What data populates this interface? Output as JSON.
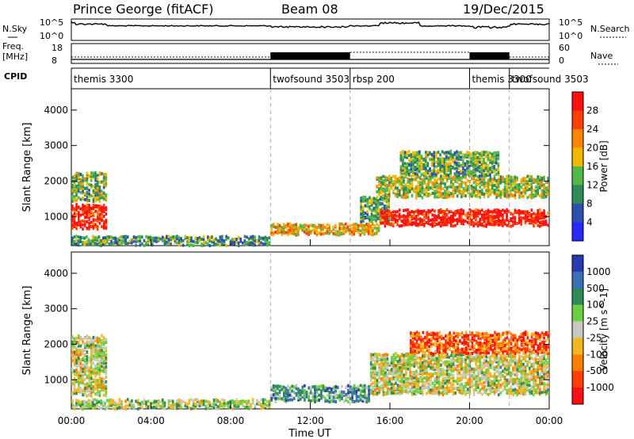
{
  "header": {
    "station": "Prince George (fitACF)",
    "beam": "Beam 08",
    "date": "19/Dec/2015"
  },
  "noise_panel": {
    "left_label": "N.Sky",
    "right_label": "N.Search",
    "left_ticks": [
      "10^5",
      "10^0"
    ],
    "right_ticks": [
      "10^5",
      "10^0"
    ]
  },
  "freq_panel": {
    "left_label_1": "Freq.",
    "left_label_2": "[MHz]",
    "left_ticks": [
      "18",
      "8"
    ],
    "right_label": "Nave",
    "right_ticks": [
      "60",
      "0"
    ]
  },
  "cpid_panel": {
    "label": "CPID",
    "modes": [
      {
        "name": "themis 3300",
        "start": 0.0
      },
      {
        "name": "twofsound 3503",
        "start": 10.0
      },
      {
        "name": "rbsp 200",
        "start": 14.0
      },
      {
        "name": "themis 3300",
        "start": 20.0
      },
      {
        "name": "twofsound 3503",
        "start": 22.0
      }
    ]
  },
  "x_axis": {
    "title": "Time UT",
    "tick_labels": [
      "00:00",
      "04:00",
      "08:00",
      "12:00",
      "16:00",
      "20:00",
      "00:00"
    ],
    "tick_hours": [
      0,
      4,
      8,
      12,
      16,
      20,
      24
    ]
  },
  "chart_data": [
    {
      "type": "heatmap",
      "name": "power",
      "ylabel": "Slant Range [km]",
      "ylim": [
        180,
        4600
      ],
      "xlim": [
        0,
        24
      ],
      "y_ticks": [
        1000,
        2000,
        3000,
        4000
      ],
      "colorbar": {
        "title": "Power [dB]",
        "tick_labels": [
          "4",
          "8",
          "12",
          "16",
          "20",
          "24",
          "28"
        ],
        "colors": [
          "#2828ff",
          "#2f4fb0",
          "#2e8b57",
          "#52b848",
          "#f0b800",
          "#ff8800",
          "#ff4000",
          "#ff1010"
        ]
      },
      "regions": [
        {
          "t0": 0.0,
          "t1": 1.8,
          "r0": 700,
          "r1": 1400,
          "level": 0.92
        },
        {
          "t0": 0.0,
          "t1": 1.8,
          "r0": 1500,
          "r1": 2300,
          "level": 0.45
        },
        {
          "t0": 0.0,
          "t1": 10.0,
          "r0": 250,
          "r1": 500,
          "level": 0.35
        },
        {
          "t0": 10.0,
          "t1": 15.5,
          "r0": 550,
          "r1": 850,
          "level": 0.6
        },
        {
          "t0": 14.5,
          "t1": 16.0,
          "r0": 900,
          "r1": 1600,
          "level": 0.4
        },
        {
          "t0": 15.5,
          "t1": 24.0,
          "r0": 800,
          "r1": 1250,
          "level": 0.95
        },
        {
          "t0": 15.3,
          "t1": 24.0,
          "r0": 1600,
          "r1": 2200,
          "level": 0.5
        },
        {
          "t0": 16.5,
          "t1": 21.5,
          "r0": 2200,
          "r1": 2900,
          "level": 0.4
        }
      ]
    },
    {
      "type": "heatmap",
      "name": "velocity",
      "ylabel": "Slant Range [km]",
      "ylim": [
        180,
        4600
      ],
      "xlim": [
        0,
        24
      ],
      "y_ticks": [
        1000,
        2000,
        3000,
        4000
      ],
      "colorbar": {
        "title": "Velocity [m s^-1]",
        "tick_labels": [
          "1000",
          "500",
          "100",
          "25",
          "-25",
          "-100",
          "-500",
          "-1000"
        ],
        "colors": [
          "#2a3ab0",
          "#3a6fb4",
          "#2e8b57",
          "#6cd040",
          "#c8c8c0",
          "#f0b820",
          "#ff8000",
          "#ff4000",
          "#ff1010"
        ]
      },
      "regions": [
        {
          "t0": 0.0,
          "t1": 1.8,
          "r0": 600,
          "r1": 2300,
          "level": 0.5
        },
        {
          "t0": 0.0,
          "t1": 10.0,
          "r0": 250,
          "r1": 500,
          "level": 0.55
        },
        {
          "t0": 10.0,
          "t1": 15.0,
          "r0": 450,
          "r1": 900,
          "level": 0.7
        },
        {
          "t0": 15.0,
          "t1": 24.0,
          "r0": 650,
          "r1": 1800,
          "level": 0.5
        },
        {
          "t0": 17.0,
          "t1": 24.0,
          "r0": 1800,
          "r1": 2400,
          "level": 0.2
        }
      ]
    }
  ]
}
